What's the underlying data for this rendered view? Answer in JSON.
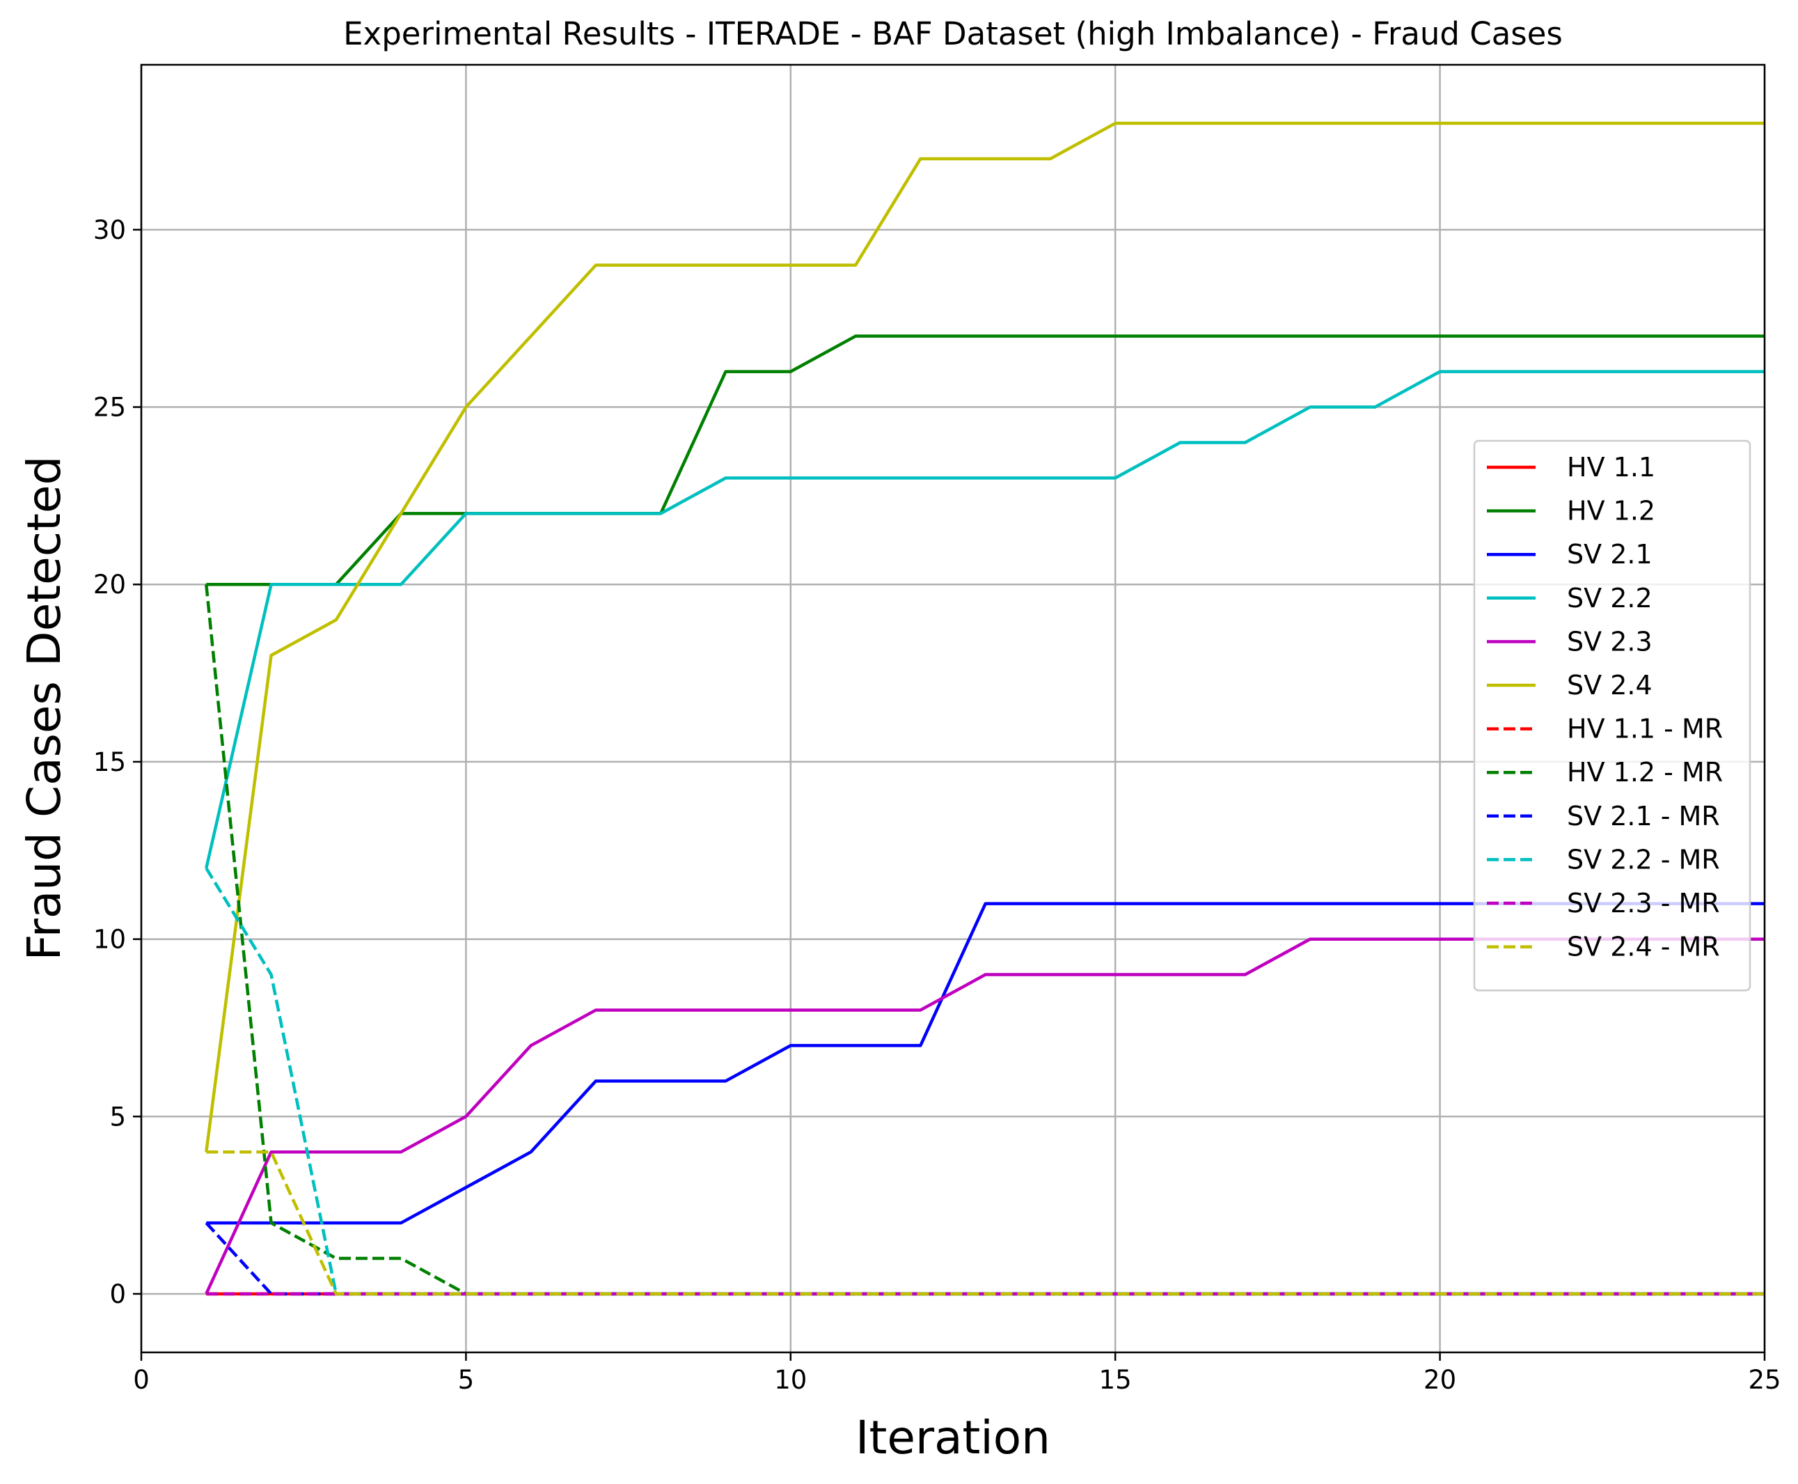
{
  "chart_data": {
    "type": "line",
    "title": "Experimental Results - ITERADE - BAF Dataset (high Imbalance) - Fraud Cases",
    "xlabel": "Iteration",
    "ylabel": "Fraud Cases Detected",
    "xlim": [
      0,
      25
    ],
    "ylim": [
      -1.65,
      34.65
    ],
    "x_ticks": [
      0,
      5,
      10,
      15,
      20,
      25
    ],
    "y_ticks": [
      0,
      5,
      10,
      15,
      20,
      25,
      30
    ],
    "grid": true,
    "legend_position": "center-right",
    "x": [
      1,
      2,
      3,
      4,
      5,
      6,
      7,
      8,
      9,
      10,
      11,
      12,
      13,
      14,
      15,
      16,
      17,
      18,
      19,
      20,
      21,
      22,
      23,
      24,
      25
    ],
    "series": [
      {
        "name": "HV 1.1",
        "color": "#ff0000",
        "dash": "solid",
        "values": [
          0,
          0,
          0,
          0,
          0,
          0,
          0,
          0,
          0,
          0,
          0,
          0,
          0,
          0,
          0,
          0,
          0,
          0,
          0,
          0,
          0,
          0,
          0,
          0,
          0
        ]
      },
      {
        "name": "HV 1.2",
        "color": "#008000",
        "dash": "solid",
        "values": [
          20,
          20,
          20,
          22,
          22,
          22,
          22,
          22,
          26,
          26,
          27,
          27,
          27,
          27,
          27,
          27,
          27,
          27,
          27,
          27,
          27,
          27,
          27,
          27,
          27
        ]
      },
      {
        "name": "SV 2.1",
        "color": "#0000ff",
        "dash": "solid",
        "values": [
          2,
          2,
          2,
          2,
          3,
          4,
          6,
          6,
          6,
          7,
          7,
          7,
          11,
          11,
          11,
          11,
          11,
          11,
          11,
          11,
          11,
          11,
          11,
          11,
          11
        ]
      },
      {
        "name": "SV 2.2",
        "color": "#00bfbf",
        "dash": "solid",
        "values": [
          12,
          20,
          20,
          20,
          22,
          22,
          22,
          22,
          23,
          23,
          23,
          23,
          23,
          23,
          23,
          24,
          24,
          25,
          25,
          26,
          26,
          26,
          26,
          26,
          26
        ]
      },
      {
        "name": "SV 2.3",
        "color": "#bf00bf",
        "dash": "solid",
        "values": [
          0,
          4,
          4,
          4,
          5,
          7,
          8,
          8,
          8,
          8,
          8,
          8,
          9,
          9,
          9,
          9,
          9,
          10,
          10,
          10,
          10,
          10,
          10,
          10,
          10
        ]
      },
      {
        "name": "SV 2.4",
        "color": "#bfbf00",
        "dash": "solid",
        "values": [
          4,
          18,
          19,
          22,
          25,
          27,
          29,
          29,
          29,
          29,
          29,
          32,
          32,
          32,
          33,
          33,
          33,
          33,
          33,
          33,
          33,
          33,
          33,
          33,
          33
        ]
      },
      {
        "name": "HV 1.1 - MR",
        "color": "#ff0000",
        "dash": "dashed",
        "values": [
          0,
          0,
          0,
          0,
          0,
          0,
          0,
          0,
          0,
          0,
          0,
          0,
          0,
          0,
          0,
          0,
          0,
          0,
          0,
          0,
          0,
          0,
          0,
          0,
          0
        ]
      },
      {
        "name": "HV 1.2 - MR",
        "color": "#008000",
        "dash": "dashed",
        "values": [
          20,
          2,
          1,
          1,
          0,
          0,
          0,
          0,
          0,
          0,
          0,
          0,
          0,
          0,
          0,
          0,
          0,
          0,
          0,
          0,
          0,
          0,
          0,
          0,
          0
        ]
      },
      {
        "name": "SV 2.1 - MR",
        "color": "#0000ff",
        "dash": "dashed",
        "values": [
          2,
          0,
          0,
          0,
          0,
          0,
          0,
          0,
          0,
          0,
          0,
          0,
          0,
          0,
          0,
          0,
          0,
          0,
          0,
          0,
          0,
          0,
          0,
          0,
          0
        ]
      },
      {
        "name": "SV 2.2 - MR",
        "color": "#00bfbf",
        "dash": "dashed",
        "values": [
          12,
          9,
          0,
          0,
          0,
          0,
          0,
          0,
          0,
          0,
          0,
          0,
          0,
          0,
          0,
          0,
          0,
          0,
          0,
          0,
          0,
          0,
          0,
          0,
          0
        ]
      },
      {
        "name": "SV 2.3 - MR",
        "color": "#bf00bf",
        "dash": "dashed",
        "values": [
          0,
          0,
          0,
          0,
          0,
          0,
          0,
          0,
          0,
          0,
          0,
          0,
          0,
          0,
          0,
          0,
          0,
          0,
          0,
          0,
          0,
          0,
          0,
          0,
          0
        ]
      },
      {
        "name": "SV 2.4 - MR",
        "color": "#bfbf00",
        "dash": "dashed",
        "values": [
          4,
          4,
          0,
          0,
          0,
          0,
          0,
          0,
          0,
          0,
          0,
          0,
          0,
          0,
          0,
          0,
          0,
          0,
          0,
          0,
          0,
          0,
          0,
          0,
          0
        ]
      }
    ]
  }
}
